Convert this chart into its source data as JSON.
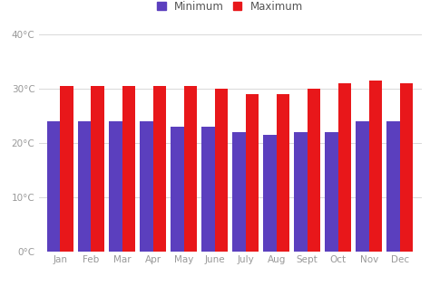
{
  "months": [
    "Jan",
    "Feb",
    "Mar",
    "Apr",
    "May",
    "June",
    "July",
    "Aug",
    "Sept",
    "Oct",
    "Nov",
    "Dec"
  ],
  "min_temps": [
    24,
    24,
    24,
    24,
    23,
    23,
    22,
    21.5,
    22,
    22,
    24,
    24
  ],
  "max_temps": [
    30.5,
    30.5,
    30.5,
    30.5,
    30.5,
    30,
    29,
    29,
    30,
    31,
    31.5,
    31
  ],
  "min_color": "#5b3fbe",
  "max_color": "#e8171a",
  "ylim": [
    0,
    40
  ],
  "yticks": [
    0,
    10,
    20,
    30,
    40
  ],
  "ytick_labels": [
    "0°C",
    "10°C",
    "20°C",
    "30°C",
    "40°C"
  ],
  "legend_min_label": "Minimum",
  "legend_max_label": "Maximum",
  "background_color": "#ffffff",
  "bar_width": 0.42,
  "grid_color": "#d8d8d8",
  "tick_color": "#999999",
  "tick_fontsize": 7.5
}
